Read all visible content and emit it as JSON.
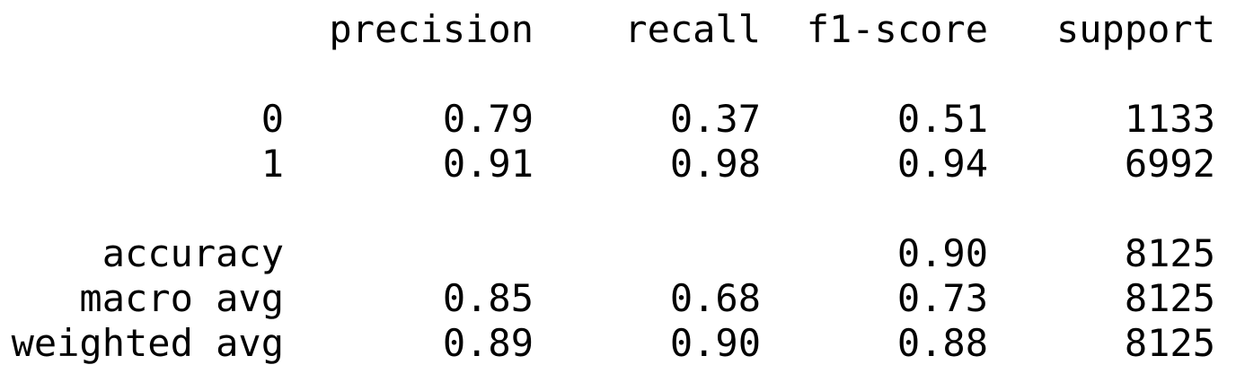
{
  "report": {
    "header": {
      "precision": "precision",
      "recall": "recall",
      "f1_score": "f1-score",
      "support": "support"
    },
    "classes": [
      {
        "label": "0",
        "precision": "0.79",
        "recall": "0.37",
        "f1_score": "0.51",
        "support": "1133"
      },
      {
        "label": "1",
        "precision": "0.91",
        "recall": "0.98",
        "f1_score": "0.94",
        "support": "6992"
      }
    ],
    "accuracy": {
      "label": "accuracy",
      "f1_score": "0.90",
      "support": "8125"
    },
    "macro_avg": {
      "label": "macro avg",
      "precision": "0.85",
      "recall": "0.68",
      "f1_score": "0.73",
      "support": "8125"
    },
    "weighted_avg": {
      "label": "weighted avg",
      "precision": "0.89",
      "recall": "0.90",
      "f1_score": "0.88",
      "support": "8125"
    }
  }
}
